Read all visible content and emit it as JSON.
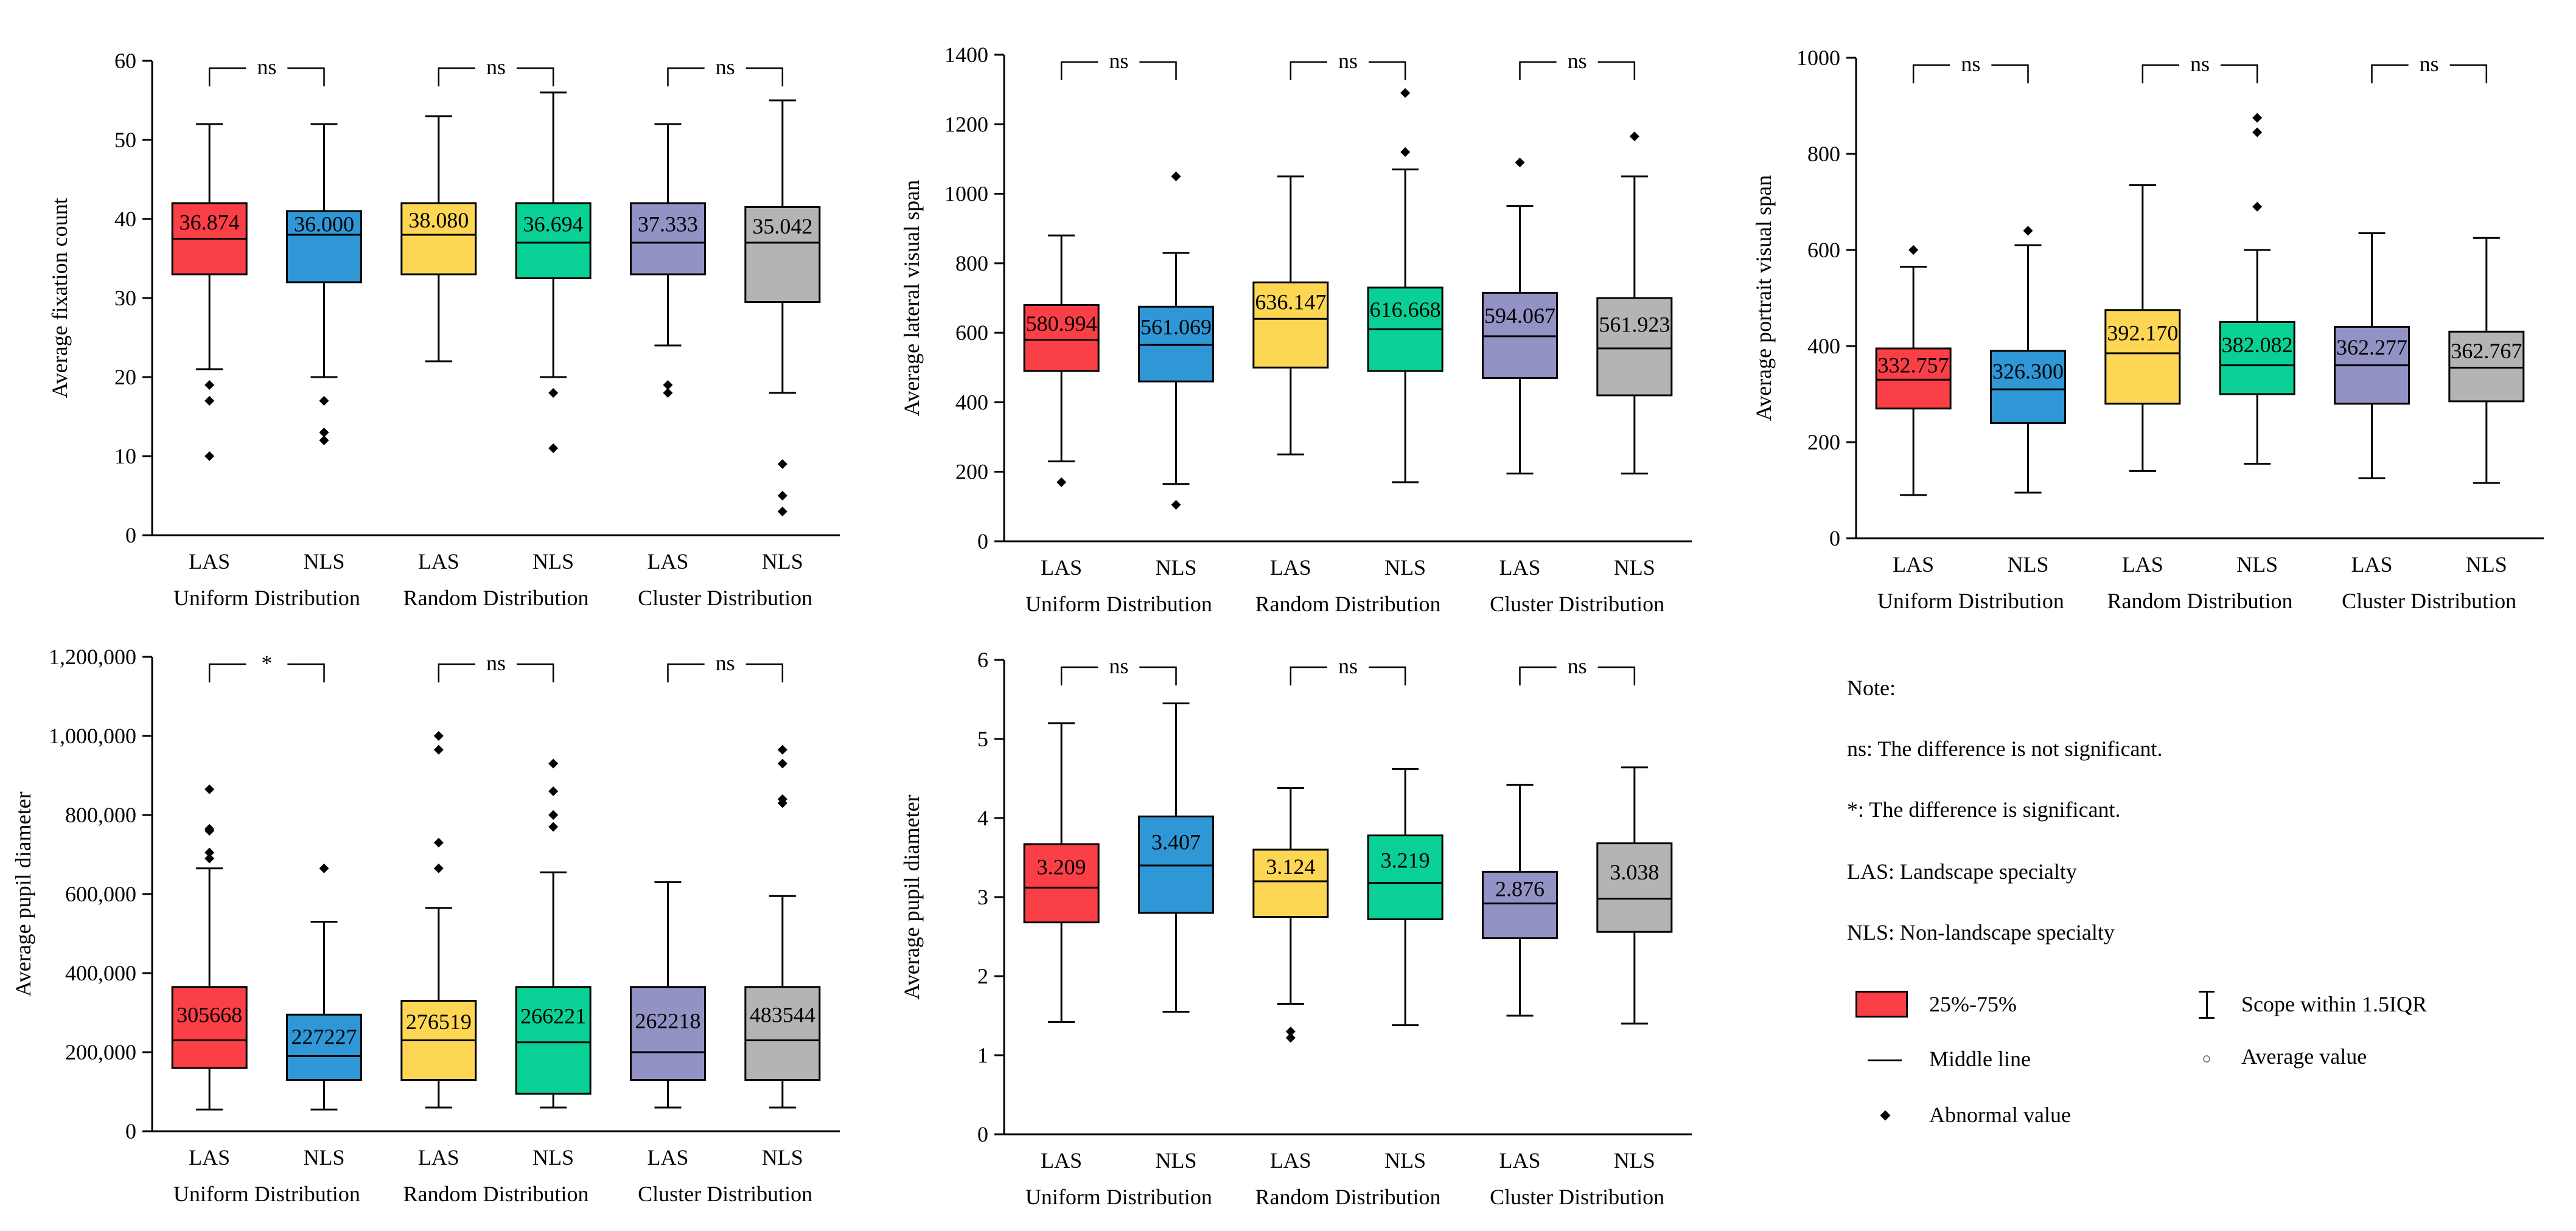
{
  "colors": {
    "red": "#fa3f46",
    "blue": "#2f97d6",
    "yellow": "#fdd654",
    "green": "#09d196",
    "purple": "#9293c4",
    "gray": "#b4b4b4"
  },
  "chart_data": [
    {
      "type": "box",
      "ylabel": "Average fixation count",
      "ylim": [
        0,
        60
      ],
      "yticks": [
        0,
        10,
        20,
        30,
        40,
        50,
        60
      ],
      "ytick_labels": [
        "0",
        "10",
        "20",
        "30",
        "40",
        "50",
        "60"
      ],
      "categories": [
        "LAS",
        "NLS",
        "LAS",
        "NLS",
        "LAS",
        "NLS"
      ],
      "groups": [
        "Uniform Distribution",
        "Random Distribution",
        "Cluster Distribution"
      ],
      "significance": [
        "ns",
        "ns",
        "ns"
      ],
      "boxes": [
        {
          "q1": 33,
          "median": 37.5,
          "q3": 42,
          "whisker_low": 21,
          "whisker_high": 52,
          "mean_label": "36.874",
          "outliers": [
            10,
            17,
            19
          ],
          "color": "red"
        },
        {
          "q1": 32,
          "median": 38,
          "q3": 41,
          "whisker_low": 20,
          "whisker_high": 52,
          "mean_label": "36.000",
          "outliers": [
            12,
            13,
            17
          ],
          "color": "blue"
        },
        {
          "q1": 33,
          "median": 38,
          "q3": 42,
          "whisker_low": 22,
          "whisker_high": 53,
          "mean_label": "38.080",
          "outliers": [],
          "color": "yellow"
        },
        {
          "q1": 32.5,
          "median": 37,
          "q3": 42,
          "whisker_low": 20,
          "whisker_high": 56,
          "mean_label": "36.694",
          "outliers": [
            11,
            18
          ],
          "color": "green"
        },
        {
          "q1": 33,
          "median": 37,
          "q3": 42,
          "whisker_low": 24,
          "whisker_high": 52,
          "mean_label": "37.333",
          "outliers": [
            18,
            19
          ],
          "color": "purple"
        },
        {
          "q1": 29.5,
          "median": 37,
          "q3": 41.5,
          "whisker_low": 18,
          "whisker_high": 55,
          "mean_label": "35.042",
          "outliers": [
            3,
            5,
            9
          ],
          "color": "gray"
        }
      ]
    },
    {
      "type": "box",
      "ylabel": "Average lateral visual span",
      "ylim": [
        0,
        1400
      ],
      "yticks": [
        0,
        200,
        400,
        600,
        800,
        1000,
        1200,
        1400
      ],
      "ytick_labels": [
        "0",
        "200",
        "400",
        "600",
        "800",
        "1000",
        "1200",
        "1400"
      ],
      "categories": [
        "LAS",
        "NLS",
        "LAS",
        "NLS",
        "LAS",
        "NLS"
      ],
      "groups": [
        "Uniform Distribution",
        "Random Distribution",
        "Cluster Distribution"
      ],
      "significance": [
        "ns",
        "ns",
        "ns"
      ],
      "boxes": [
        {
          "q1": 490,
          "median": 580,
          "q3": 680,
          "whisker_low": 230,
          "whisker_high": 880,
          "mean_label": "580.994",
          "outliers": [
            170
          ],
          "color": "red"
        },
        {
          "q1": 460,
          "median": 565,
          "q3": 675,
          "whisker_low": 165,
          "whisker_high": 830,
          "mean_label": "561.069",
          "outliers": [
            105,
            1050
          ],
          "color": "blue"
        },
        {
          "q1": 500,
          "median": 640,
          "q3": 745,
          "whisker_low": 250,
          "whisker_high": 1050,
          "mean_label": "636.147",
          "outliers": [],
          "color": "yellow"
        },
        {
          "q1": 490,
          "median": 610,
          "q3": 730,
          "whisker_low": 170,
          "whisker_high": 1070,
          "mean_label": "616.668",
          "outliers": [
            1120,
            1290
          ],
          "color": "green"
        },
        {
          "q1": 470,
          "median": 590,
          "q3": 715,
          "whisker_low": 195,
          "whisker_high": 965,
          "mean_label": "594.067",
          "outliers": [
            1090
          ],
          "color": "purple"
        },
        {
          "q1": 420,
          "median": 555,
          "q3": 700,
          "whisker_low": 195,
          "whisker_high": 1050,
          "mean_label": "561.923",
          "outliers": [
            1165
          ],
          "color": "gray"
        }
      ]
    },
    {
      "type": "box",
      "ylabel": "Average portrait visual span",
      "ylim": [
        0,
        1000
      ],
      "yticks": [
        0,
        200,
        400,
        600,
        800,
        1000
      ],
      "ytick_labels": [
        "0",
        "200",
        "400",
        "600",
        "800",
        "1000"
      ],
      "categories": [
        "LAS",
        "NLS",
        "LAS",
        "NLS",
        "LAS",
        "NLS"
      ],
      "groups": [
        "Uniform Distribution",
        "Random Distribution",
        "Cluster Distribution"
      ],
      "significance": [
        "ns",
        "ns",
        "ns"
      ],
      "boxes": [
        {
          "q1": 270,
          "median": 330,
          "q3": 395,
          "whisker_low": 90,
          "whisker_high": 565,
          "mean_label": "332.757",
          "outliers": [
            600
          ],
          "color": "red"
        },
        {
          "q1": 240,
          "median": 310,
          "q3": 390,
          "whisker_low": 95,
          "whisker_high": 610,
          "mean_label": "326.300",
          "outliers": [
            640
          ],
          "color": "blue"
        },
        {
          "q1": 280,
          "median": 385,
          "q3": 475,
          "whisker_low": 140,
          "whisker_high": 735,
          "mean_label": "392.170",
          "outliers": [],
          "color": "yellow"
        },
        {
          "q1": 300,
          "median": 360,
          "q3": 450,
          "whisker_low": 155,
          "whisker_high": 600,
          "mean_label": "382.082",
          "outliers": [
            690,
            845,
            875
          ],
          "color": "green"
        },
        {
          "q1": 280,
          "median": 360,
          "q3": 440,
          "whisker_low": 125,
          "whisker_high": 635,
          "mean_label": "362.277",
          "outliers": [],
          "color": "purple"
        },
        {
          "q1": 285,
          "median": 355,
          "q3": 430,
          "whisker_low": 115,
          "whisker_high": 625,
          "mean_label": "362.767",
          "outliers": [],
          "color": "gray"
        }
      ]
    },
    {
      "type": "box",
      "ylabel": "Average pupil diameter",
      "ylim": [
        0,
        1200000
      ],
      "yticks": [
        0,
        200000,
        400000,
        600000,
        800000,
        1000000,
        1200000
      ],
      "ytick_labels": [
        "0",
        "200,000",
        "400,000",
        "600,000",
        "800,000",
        "1,000,000",
        "1,200,000"
      ],
      "categories": [
        "LAS",
        "NLS",
        "LAS",
        "NLS",
        "LAS",
        "NLS"
      ],
      "groups": [
        "Uniform Distribution",
        "Random Distribution",
        "Cluster Distribution"
      ],
      "significance": [
        "*",
        "ns",
        "ns"
      ],
      "boxes": [
        {
          "q1": 160000,
          "median": 230000,
          "q3": 365000,
          "whisker_low": 55000,
          "whisker_high": 665000,
          "mean_label": "305668",
          "outliers": [
            690000,
            705000,
            760000,
            765000,
            865000
          ],
          "color": "red"
        },
        {
          "q1": 130000,
          "median": 190000,
          "q3": 295000,
          "whisker_low": 55000,
          "whisker_high": 530000,
          "mean_label": "227227",
          "outliers": [
            665000
          ],
          "color": "blue"
        },
        {
          "q1": 130000,
          "median": 230000,
          "q3": 330000,
          "whisker_low": 60000,
          "whisker_high": 565000,
          "mean_label": "276519",
          "outliers": [
            665000,
            730000,
            965000,
            1000000
          ],
          "color": "yellow"
        },
        {
          "q1": 95000,
          "median": 225000,
          "q3": 365000,
          "whisker_low": 60000,
          "whisker_high": 655000,
          "mean_label": "266221",
          "outliers": [
            770000,
            800000,
            860000,
            930000
          ],
          "color": "green"
        },
        {
          "q1": 130000,
          "median": 200000,
          "q3": 365000,
          "whisker_low": 60000,
          "whisker_high": 630000,
          "mean_label": "262218",
          "outliers": [],
          "color": "purple"
        },
        {
          "q1": 130000,
          "median": 230000,
          "q3": 365000,
          "whisker_low": 60000,
          "whisker_high": 595000,
          "mean_label": "483544",
          "outliers": [
            830000,
            840000,
            930000,
            965000
          ],
          "color": "gray"
        }
      ]
    },
    {
      "type": "box",
      "ylabel": "Average pupil diameter",
      "ylim": [
        0,
        6
      ],
      "yticks": [
        0,
        1,
        2,
        3,
        4,
        5,
        6
      ],
      "ytick_labels": [
        "0",
        "1",
        "2",
        "3",
        "4",
        "5",
        "6"
      ],
      "categories": [
        "LAS",
        "NLS",
        "LAS",
        "NLS",
        "LAS",
        "NLS"
      ],
      "groups": [
        "Uniform Distribution",
        "Random Distribution",
        "Cluster Distribution"
      ],
      "significance": [
        "ns",
        "ns",
        "ns"
      ],
      "boxes": [
        {
          "q1": 2.68,
          "median": 3.12,
          "q3": 3.67,
          "whisker_low": 1.42,
          "whisker_high": 5.2,
          "mean_label": "3.209",
          "outliers": [],
          "color": "red"
        },
        {
          "q1": 2.8,
          "median": 3.4,
          "q3": 4.02,
          "whisker_low": 1.55,
          "whisker_high": 5.45,
          "mean_label": "3.407",
          "outliers": [],
          "color": "blue"
        },
        {
          "q1": 2.75,
          "median": 3.2,
          "q3": 3.6,
          "whisker_low": 1.65,
          "whisker_high": 4.38,
          "mean_label": "3.124",
          "outliers": [
            1.22,
            1.3
          ],
          "color": "yellow"
        },
        {
          "q1": 2.72,
          "median": 3.18,
          "q3": 3.78,
          "whisker_low": 1.38,
          "whisker_high": 4.62,
          "mean_label": "3.219",
          "outliers": [],
          "color": "green"
        },
        {
          "q1": 2.48,
          "median": 2.92,
          "q3": 3.32,
          "whisker_low": 1.5,
          "whisker_high": 4.42,
          "mean_label": "2.876",
          "outliers": [],
          "color": "purple"
        },
        {
          "q1": 2.56,
          "median": 2.98,
          "q3": 3.68,
          "whisker_low": 1.4,
          "whisker_high": 4.64,
          "mean_label": "3.038",
          "outliers": [],
          "color": "gray"
        }
      ]
    }
  ],
  "legend": {
    "note_title": "Note:",
    "note_ns": "ns: The difference is not significant.",
    "note_star": "*:  The difference is significant.",
    "note_las": "LAS:  Landscape specialty",
    "note_nls": "NLS:  Non-landscape specialty",
    "box_label": "25%-75%",
    "whisker_label": "Scope within 1.5IQR",
    "median_label": "Middle line",
    "mean_label": "Average value",
    "outlier_label": "Abnormal value"
  }
}
